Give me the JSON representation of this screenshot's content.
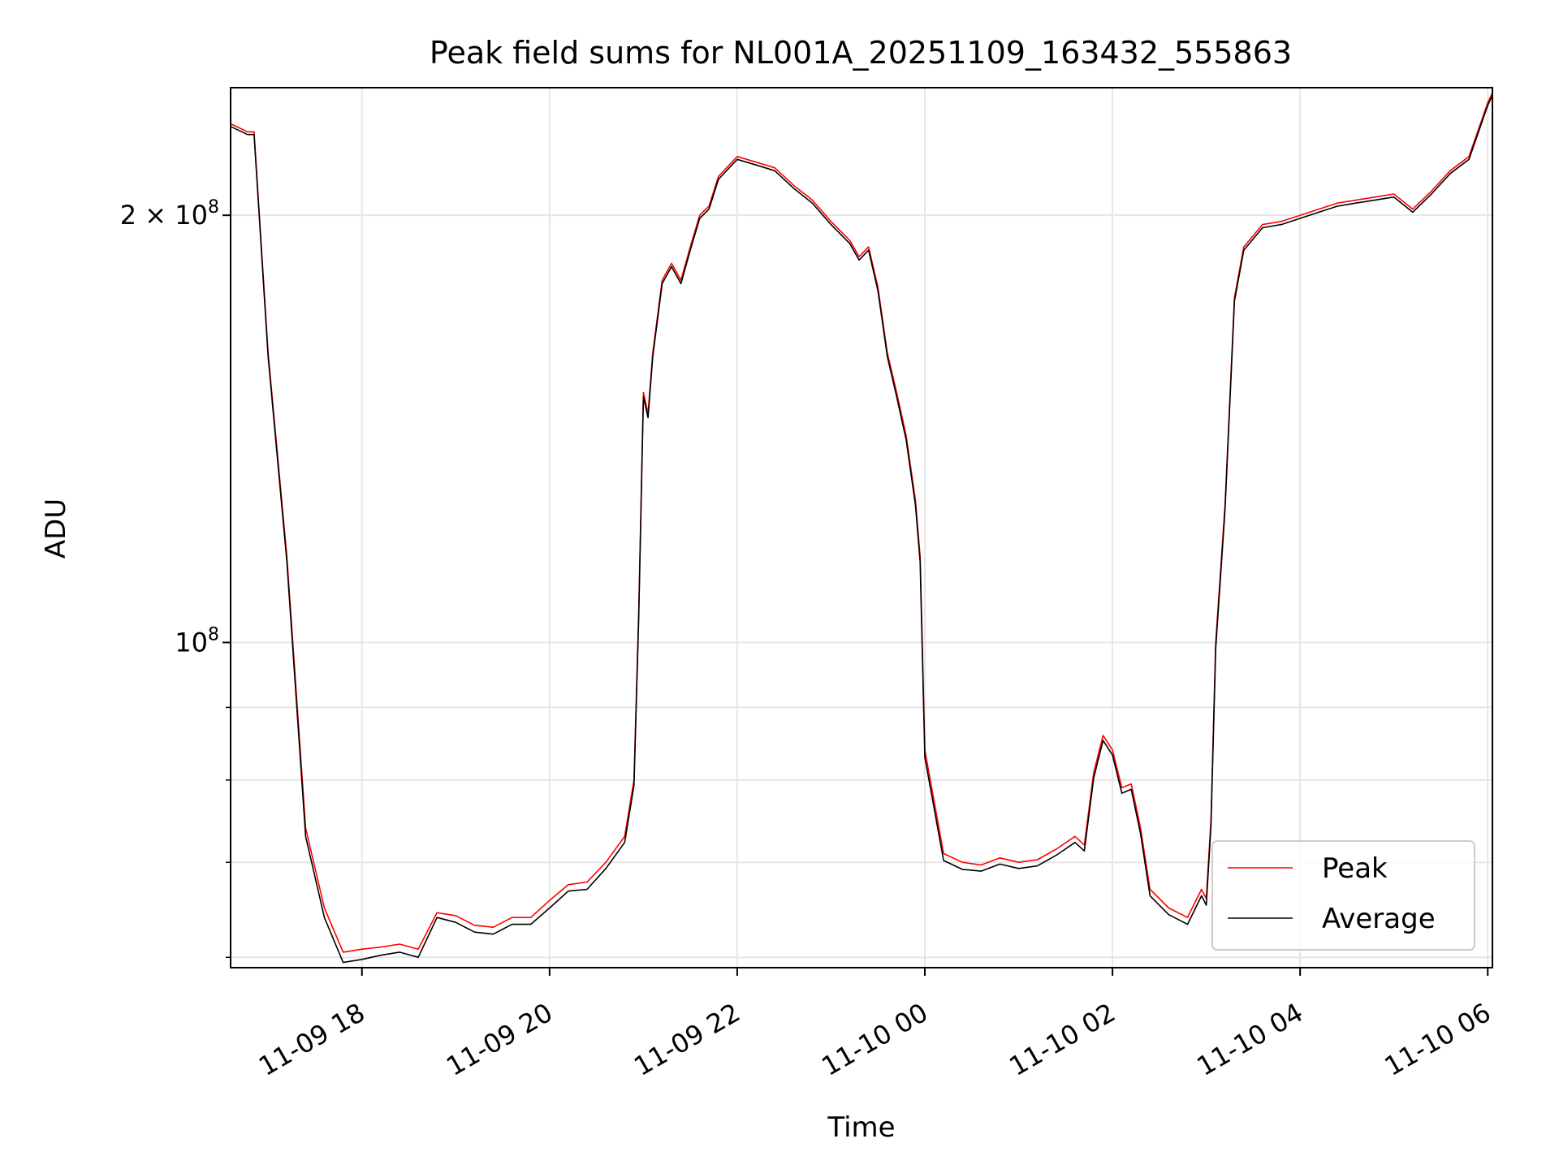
{
  "chart_data": {
    "type": "line",
    "title": "Peak field sums for NL001A_20251109_163432_555863",
    "xlabel": "Time",
    "ylabel": "ADU",
    "yscale": "log",
    "grid": true,
    "legend_position": "lower-right",
    "xlim_hours": [
      16.6,
      30.05
    ],
    "ylim": [
      59000000,
      246000000
    ],
    "x_ticks": [
      {
        "hour": 18,
        "label": "11-09 18"
      },
      {
        "hour": 20,
        "label": "11-09 20"
      },
      {
        "hour": 22,
        "label": "11-09 22"
      },
      {
        "hour": 24,
        "label": "11-10 00"
      },
      {
        "hour": 26,
        "label": "11-10 02"
      },
      {
        "hour": 28,
        "label": "11-10 04"
      },
      {
        "hour": 30,
        "label": "11-10 06"
      }
    ],
    "y_major_ticks": [
      {
        "value": 100000000,
        "base": "10",
        "exp": "8",
        "prefix": ""
      },
      {
        "value": 200000000,
        "base": "10",
        "exp": "8",
        "prefix": "2 × "
      }
    ],
    "y_minor_ticks": [
      60000000,
      70000000,
      80000000,
      90000000
    ],
    "x_hours": [
      16.6,
      16.78,
      16.85,
      17.0,
      17.2,
      17.4,
      17.6,
      17.8,
      18.0,
      18.2,
      18.4,
      18.6,
      18.8,
      19.0,
      19.2,
      19.4,
      19.6,
      19.8,
      20.0,
      20.2,
      20.4,
      20.6,
      20.8,
      20.9,
      20.95,
      21.0,
      21.05,
      21.1,
      21.2,
      21.3,
      21.4,
      21.5,
      21.6,
      21.7,
      21.8,
      22.0,
      22.2,
      22.4,
      22.6,
      22.8,
      23.0,
      23.2,
      23.3,
      23.4,
      23.5,
      23.6,
      23.7,
      23.8,
      23.9,
      23.95,
      24.0,
      24.2,
      24.4,
      24.6,
      24.8,
      25.0,
      25.2,
      25.4,
      25.6,
      25.7,
      25.8,
      25.9,
      26.0,
      26.1,
      26.2,
      26.3,
      26.4,
      26.6,
      26.8,
      26.9,
      26.95,
      27.0,
      27.05,
      27.1,
      27.2,
      27.3,
      27.4,
      27.6,
      27.8,
      28.0,
      28.2,
      28.4,
      28.6,
      28.8,
      29.0,
      29.2,
      29.4,
      29.6,
      29.8,
      30.0,
      30.05
    ],
    "series": [
      {
        "name": "Peak",
        "color": "#ff0000",
        "values": [
          232000000,
          229000000,
          229000000,
          160000000,
          115000000,
          74000000,
          65000000,
          60500000,
          60800000,
          61000000,
          61300000,
          60800000,
          64500000,
          64200000,
          63200000,
          63000000,
          64000000,
          64000000,
          65800000,
          67500000,
          67800000,
          70000000,
          73000000,
          80000000,
          105000000,
          150000000,
          145000000,
          160000000,
          180000000,
          185000000,
          180000000,
          190000000,
          200000000,
          203000000,
          213000000,
          220000000,
          218000000,
          216000000,
          210000000,
          205000000,
          198000000,
          192000000,
          187000000,
          190000000,
          178000000,
          160000000,
          150000000,
          140000000,
          126000000,
          115000000,
          84000000,
          71000000,
          70000000,
          69700000,
          70500000,
          70000000,
          70300000,
          71500000,
          73000000,
          72000000,
          81000000,
          86000000,
          84000000,
          79000000,
          79500000,
          74000000,
          67000000,
          65000000,
          64000000,
          66000000,
          67000000,
          66000000,
          75000000,
          100000000,
          125000000,
          175000000,
          190000000,
          197000000,
          198000000,
          200000000,
          202000000,
          204000000,
          205000000,
          206000000,
          207000000,
          202000000,
          208000000,
          215000000,
          220000000,
          240000000,
          244000000
        ]
      },
      {
        "name": "Average",
        "color": "#000000",
        "values": [
          231000000,
          228000000,
          228000000,
          159000000,
          114000000,
          73000000,
          64000000,
          59500000,
          59800000,
          60200000,
          60500000,
          60000000,
          64000000,
          63500000,
          62500000,
          62300000,
          63300000,
          63300000,
          65000000,
          66800000,
          67000000,
          69300000,
          72300000,
          79300000,
          104000000,
          149000000,
          144000000,
          159000000,
          179000000,
          184000000,
          179000000,
          189000000,
          199000000,
          202000000,
          212000000,
          219000000,
          217000000,
          215000000,
          209000000,
          204000000,
          197000000,
          191000000,
          186000000,
          189000000,
          177000000,
          159000000,
          149000000,
          139000000,
          125000000,
          114000000,
          83000000,
          70200000,
          69200000,
          69000000,
          69800000,
          69300000,
          69600000,
          70800000,
          72300000,
          71300000,
          80300000,
          85300000,
          83300000,
          78300000,
          78800000,
          73300000,
          66300000,
          64300000,
          63300000,
          65300000,
          66300000,
          65300000,
          74300000,
          99000000,
          124000000,
          174000000,
          189000000,
          196000000,
          197000000,
          199000000,
          201000000,
          203000000,
          204000000,
          205000000,
          206000000,
          201000000,
          207000000,
          214000000,
          219000000,
          239000000,
          243000000
        ]
      }
    ]
  }
}
